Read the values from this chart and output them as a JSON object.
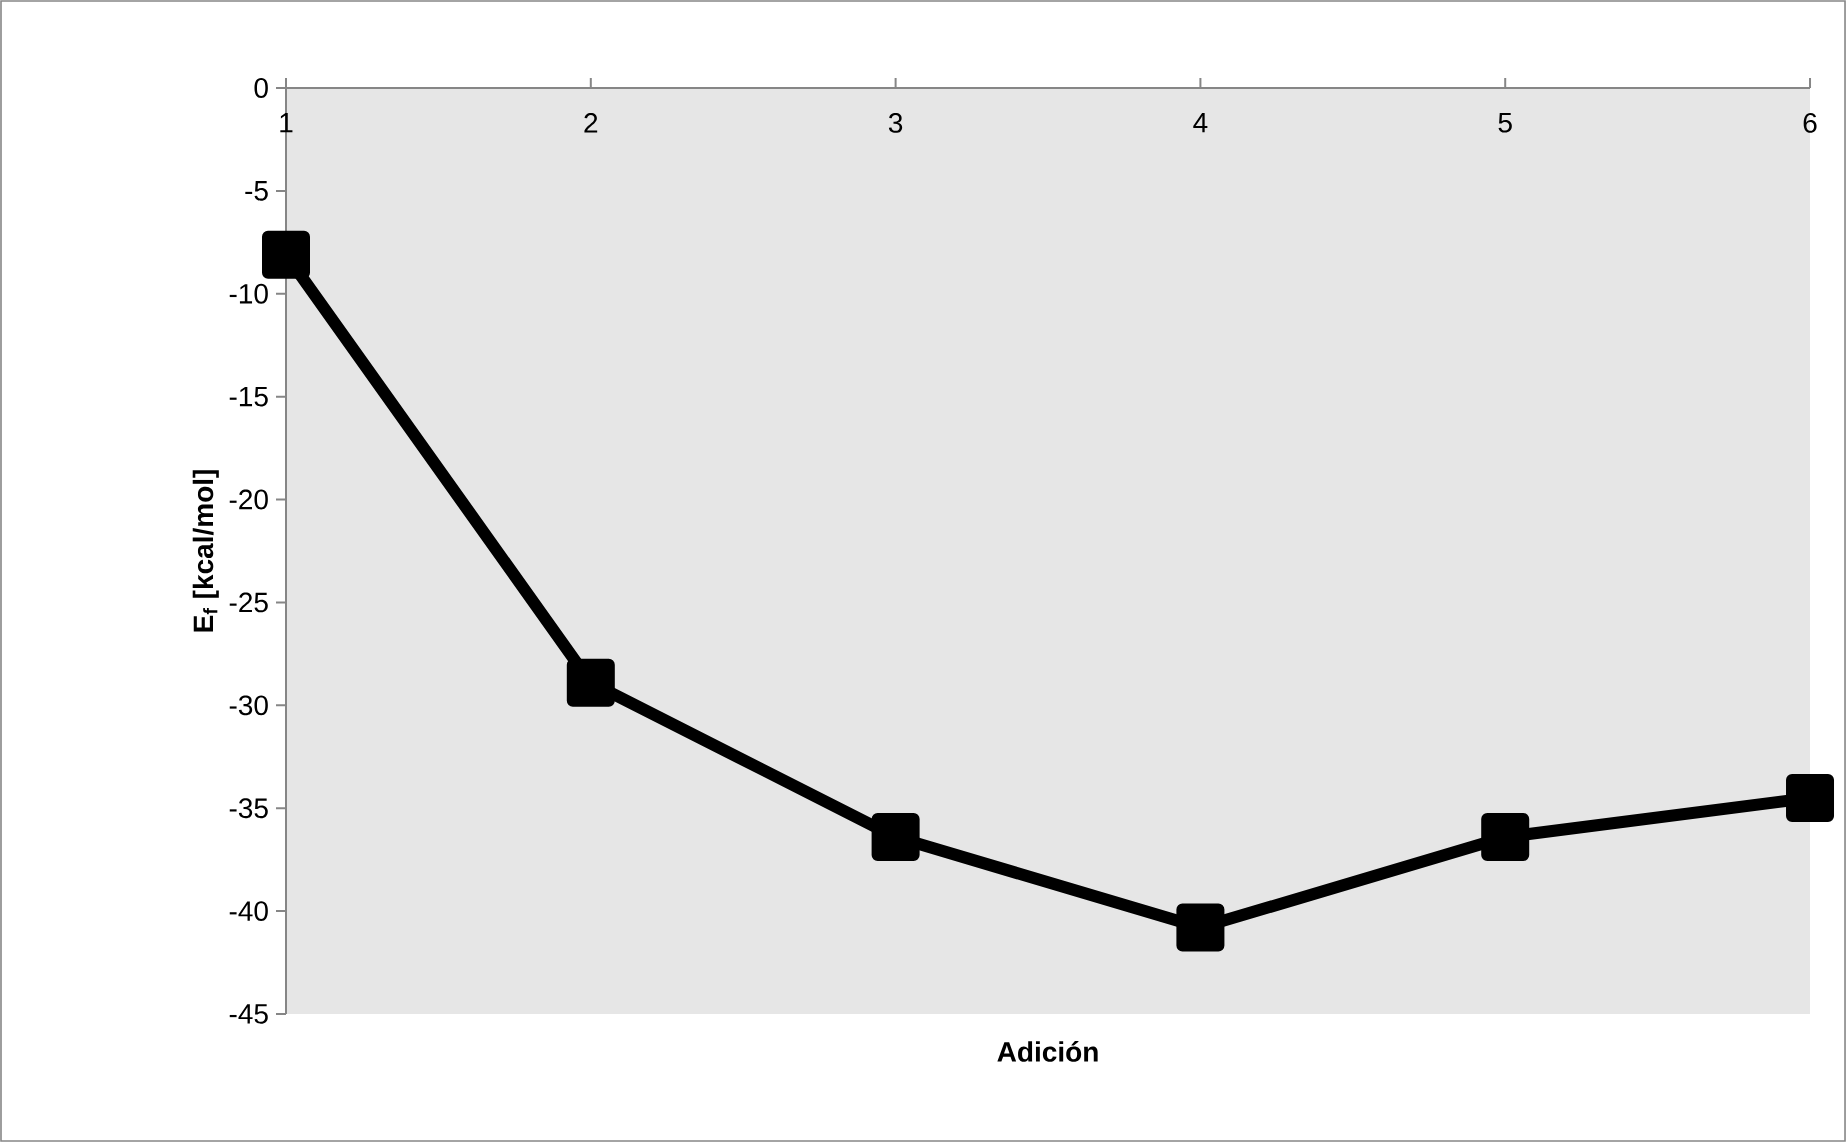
{
  "chart_data": {
    "type": "line",
    "xlabel": "Adición",
    "ylabel": "E$_{f}$ [kcal/mol]",
    "x": [
      1,
      2,
      3,
      4,
      5,
      6
    ],
    "series": [
      {
        "color": "#000000",
        "values": [
          -8.1,
          -28.9,
          -36.4,
          -40.8,
          -36.4,
          -34.5
        ]
      }
    ],
    "xlim": [
      1,
      6
    ],
    "xticks": [
      1,
      2,
      3,
      4,
      5,
      6
    ],
    "ylim": [
      -45,
      0
    ],
    "yticks": [
      -45,
      -40,
      -35,
      -30,
      -25,
      -20,
      -15,
      -10,
      -5,
      0
    ],
    "marker": "square",
    "line_style": "solid",
    "grid": false
  }
}
